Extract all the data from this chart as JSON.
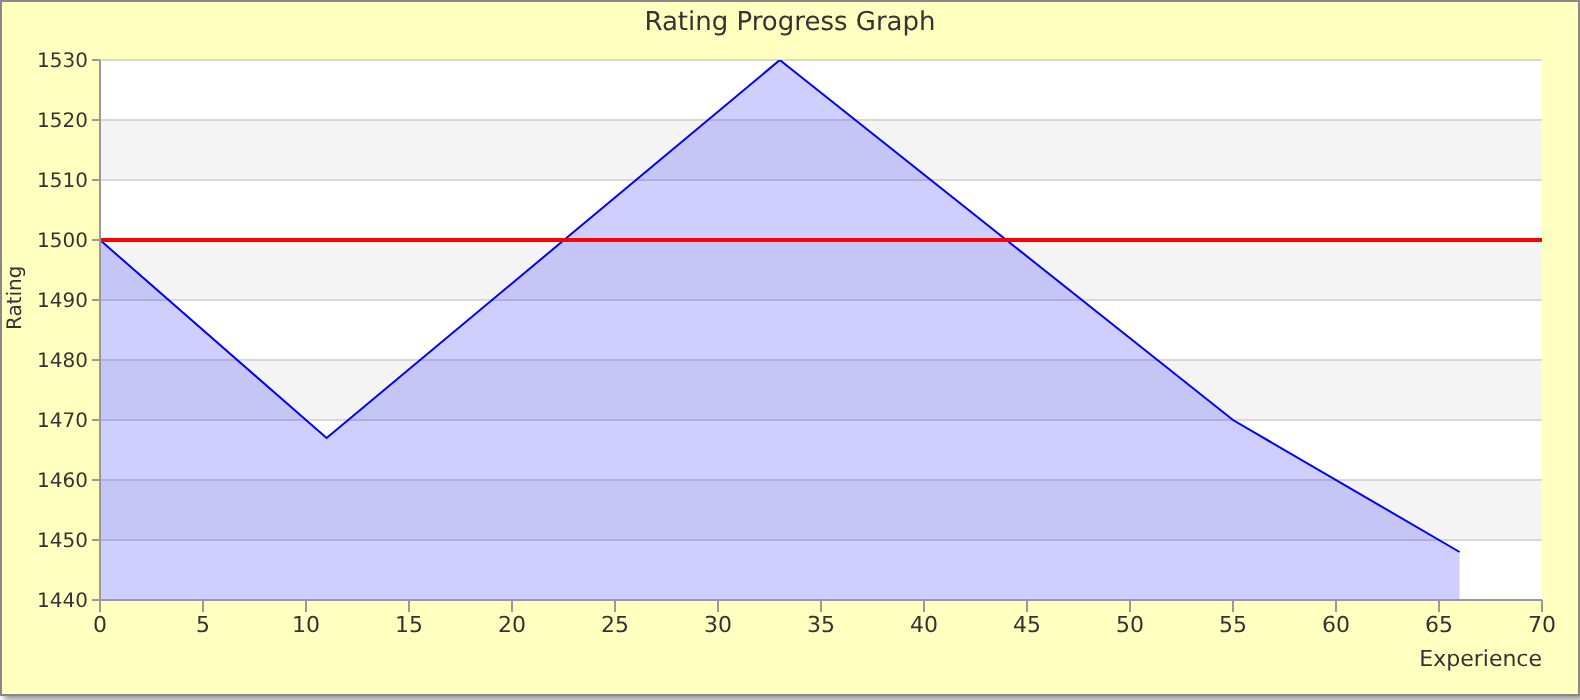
{
  "chart_data": {
    "type": "area",
    "title": "Rating Progress Graph",
    "xlabel": "Experience",
    "ylabel": "Rating",
    "x": [
      0,
      11,
      33,
      55,
      66
    ],
    "series": [
      {
        "color": "#0000ff",
        "values": [
          1500,
          1467,
          1530,
          1470,
          1448
        ]
      }
    ],
    "xlim": [
      0,
      70
    ],
    "xticks": [
      0,
      5,
      10,
      15,
      20,
      25,
      30,
      35,
      40,
      45,
      50,
      55,
      60,
      65,
      70
    ],
    "ylim": [
      1440,
      1530
    ],
    "yticks": [
      1440,
      1450,
      1460,
      1470,
      1480,
      1490,
      1500,
      1510,
      1520,
      1530
    ],
    "ref_lines": [
      {
        "axis": "y",
        "value": 1500,
        "color": "#ff0000"
      }
    ],
    "grid": "y",
    "legend": false
  }
}
